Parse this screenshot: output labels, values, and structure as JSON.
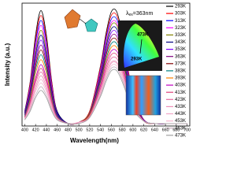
{
  "chart_data": {
    "type": "line",
    "x_label": "Wavelength(nm)",
    "y_label": "Intensity (a.u.)",
    "excitation_label": [
      "λ",
      "ex",
      "=363nm"
    ],
    "cie_labels": [
      "473K",
      "293K"
    ],
    "x": [
      400,
      410,
      420,
      430,
      440,
      450,
      460,
      480,
      500,
      520,
      540,
      550,
      560,
      570,
      580,
      590,
      600,
      620,
      640,
      670,
      700
    ],
    "xlim": [
      395,
      705
    ],
    "xticks": [
      400,
      420,
      440,
      460,
      480,
      500,
      520,
      540,
      560,
      580,
      600,
      620,
      640,
      660,
      680,
      700
    ],
    "ylim": [
      0,
      1
    ],
    "series": [
      {
        "name": "293K",
        "color": "#000000",
        "values": [
          0.12,
          0.36,
          0.74,
          0.94,
          0.74,
          0.36,
          0.12,
          0.02,
          0.03,
          0.12,
          0.49,
          0.75,
          0.93,
          0.93,
          0.75,
          0.49,
          0.26,
          0.05,
          0.02,
          0.02,
          0.02
        ]
      },
      {
        "name": "303K",
        "color": "#ff0000",
        "values": [
          0.11,
          0.35,
          0.71,
          0.9,
          0.71,
          0.35,
          0.11,
          0.02,
          0.03,
          0.12,
          0.48,
          0.73,
          0.9,
          0.9,
          0.73,
          0.48,
          0.26,
          0.05,
          0.02,
          0.02,
          0.02
        ]
      },
      {
        "name": "313K",
        "color": "#0000ff",
        "values": [
          0.11,
          0.33,
          0.68,
          0.86,
          0.68,
          0.33,
          0.11,
          0.02,
          0.03,
          0.11,
          0.46,
          0.71,
          0.87,
          0.87,
          0.71,
          0.46,
          0.25,
          0.05,
          0.02,
          0.02,
          0.02
        ]
      },
      {
        "name": "323K",
        "color": "#ff00ff",
        "values": [
          0.1,
          0.32,
          0.64,
          0.82,
          0.64,
          0.32,
          0.1,
          0.02,
          0.03,
          0.11,
          0.45,
          0.68,
          0.84,
          0.84,
          0.68,
          0.45,
          0.24,
          0.05,
          0.02,
          0.02,
          0.02
        ]
      },
      {
        "name": "333K",
        "color": "#808000",
        "values": [
          0.1,
          0.3,
          0.61,
          0.78,
          0.61,
          0.3,
          0.1,
          0.02,
          0.03,
          0.11,
          0.43,
          0.66,
          0.82,
          0.82,
          0.66,
          0.43,
          0.23,
          0.05,
          0.02,
          0.02,
          0.02
        ]
      },
      {
        "name": "343K",
        "color": "#000080",
        "values": [
          0.1,
          0.29,
          0.58,
          0.74,
          0.58,
          0.29,
          0.1,
          0.02,
          0.03,
          0.1,
          0.42,
          0.64,
          0.79,
          0.79,
          0.64,
          0.42,
          0.23,
          0.05,
          0.02,
          0.02,
          0.02
        ]
      },
      {
        "name": "353K",
        "color": "#8000ff",
        "values": [
          0.09,
          0.27,
          0.55,
          0.7,
          0.55,
          0.27,
          0.09,
          0.02,
          0.03,
          0.1,
          0.4,
          0.61,
          0.76,
          0.76,
          0.61,
          0.4,
          0.22,
          0.05,
          0.02,
          0.02,
          0.02
        ]
      },
      {
        "name": "363K",
        "color": "#800080",
        "values": [
          0.09,
          0.26,
          0.52,
          0.66,
          0.52,
          0.26,
          0.09,
          0.02,
          0.03,
          0.1,
          0.39,
          0.59,
          0.73,
          0.73,
          0.59,
          0.39,
          0.21,
          0.05,
          0.02,
          0.02,
          0.02
        ]
      },
      {
        "name": "373K",
        "color": "#800000",
        "values": [
          0.08,
          0.24,
          0.49,
          0.62,
          0.49,
          0.24,
          0.08,
          0.02,
          0.03,
          0.09,
          0.37,
          0.57,
          0.7,
          0.7,
          0.57,
          0.37,
          0.2,
          0.04,
          0.02,
          0.02,
          0.02
        ]
      },
      {
        "name": "383K",
        "color": "#008080",
        "values": [
          0.08,
          0.23,
          0.46,
          0.58,
          0.46,
          0.23,
          0.08,
          0.02,
          0.03,
          0.09,
          0.36,
          0.54,
          0.67,
          0.67,
          0.54,
          0.36,
          0.19,
          0.04,
          0.02,
          0.02,
          0.02
        ]
      },
      {
        "name": "393K",
        "color": "#ff8000",
        "values": [
          0.07,
          0.21,
          0.43,
          0.54,
          0.43,
          0.21,
          0.07,
          0.02,
          0.03,
          0.09,
          0.34,
          0.52,
          0.64,
          0.64,
          0.52,
          0.34,
          0.19,
          0.04,
          0.02,
          0.02,
          0.02
        ]
      },
      {
        "name": "403K",
        "color": "#c000c0",
        "values": [
          0.07,
          0.2,
          0.39,
          0.5,
          0.39,
          0.2,
          0.07,
          0.02,
          0.03,
          0.08,
          0.33,
          0.5,
          0.61,
          0.61,
          0.5,
          0.33,
          0.18,
          0.04,
          0.02,
          0.02,
          0.02
        ]
      },
      {
        "name": "413K",
        "color": "#e0407a",
        "values": [
          0.07,
          0.19,
          0.37,
          0.47,
          0.37,
          0.19,
          0.07,
          0.02,
          0.03,
          0.08,
          0.31,
          0.47,
          0.58,
          0.58,
          0.47,
          0.31,
          0.17,
          0.04,
          0.02,
          0.02,
          0.02
        ]
      },
      {
        "name": "423K",
        "color": "#e86aa0",
        "values": [
          0.06,
          0.18,
          0.35,
          0.44,
          0.35,
          0.18,
          0.06,
          0.02,
          0.03,
          0.08,
          0.3,
          0.45,
          0.55,
          0.55,
          0.45,
          0.3,
          0.16,
          0.04,
          0.02,
          0.02,
          0.02
        ]
      },
      {
        "name": "433K",
        "color": "#ef8fb8",
        "values": [
          0.06,
          0.16,
          0.32,
          0.41,
          0.32,
          0.16,
          0.06,
          0.02,
          0.03,
          0.07,
          0.28,
          0.43,
          0.52,
          0.52,
          0.43,
          0.28,
          0.16,
          0.04,
          0.02,
          0.02,
          0.02
        ]
      },
      {
        "name": "443K",
        "color": "#f2a6c6",
        "values": [
          0.06,
          0.15,
          0.3,
          0.38,
          0.3,
          0.15,
          0.06,
          0.02,
          0.03,
          0.07,
          0.27,
          0.41,
          0.51,
          0.51,
          0.41,
          0.27,
          0.15,
          0.04,
          0.02,
          0.02,
          0.02
        ]
      },
      {
        "name": "453K",
        "color": "#f5b8d0",
        "values": [
          0.05,
          0.14,
          0.28,
          0.35,
          0.28,
          0.14,
          0.05,
          0.02,
          0.02,
          0.07,
          0.26,
          0.39,
          0.49,
          0.49,
          0.39,
          0.26,
          0.14,
          0.04,
          0.02,
          0.02,
          0.02
        ]
      },
      {
        "name": "463K",
        "color": "#c8b0c0",
        "values": [
          0.05,
          0.13,
          0.25,
          0.32,
          0.25,
          0.13,
          0.05,
          0.02,
          0.02,
          0.07,
          0.25,
          0.38,
          0.47,
          0.47,
          0.38,
          0.25,
          0.14,
          0.04,
          0.02,
          0.02,
          0.02
        ]
      },
      {
        "name": "473K",
        "color": "#a0a0a0",
        "values": [
          0.05,
          0.12,
          0.23,
          0.29,
          0.23,
          0.12,
          0.05,
          0.02,
          0.02,
          0.07,
          0.24,
          0.36,
          0.45,
          0.45,
          0.36,
          0.24,
          0.13,
          0.04,
          0.02,
          0.02,
          0.02
        ]
      }
    ]
  }
}
